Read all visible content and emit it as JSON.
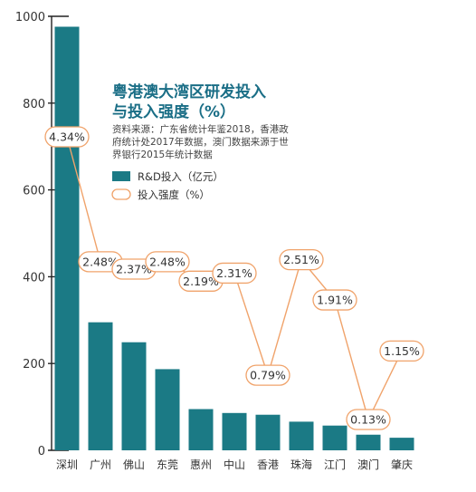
{
  "chart_data": {
    "type": "bar",
    "title_lines": [
      "粤港澳大湾区研发投入",
      "与投入强度（%）"
    ],
    "source_lines": [
      "资料来源：广东省统计年鉴2018，香港政",
      "府统计处2017年数据，澳门数据来源于世",
      "界银行2015年统计数据"
    ],
    "categories": [
      "深圳",
      "广州",
      "佛山",
      "东莞",
      "惠州",
      "中山",
      "香港",
      "珠海",
      "江门",
      "澳门",
      "肇庆"
    ],
    "ylim": [
      0,
      1000
    ],
    "yticks": [
      "0",
      "200",
      "400",
      "600",
      "800",
      "1000"
    ],
    "grid": false,
    "series": [
      {
        "name": "R&D投入（亿元）",
        "type": "bar",
        "color": "#1b7a85",
        "values": [
          976,
          295,
          249,
          187,
          95,
          86,
          82,
          66,
          57,
          36,
          29
        ]
      },
      {
        "name": "投入强度（%）",
        "type": "line",
        "color": "#f0a36b",
        "values": [
          4.34,
          2.48,
          2.37,
          2.48,
          2.19,
          2.31,
          0.79,
          2.51,
          1.91,
          0.13,
          1.15
        ],
        "labels": [
          "4.34%",
          "2.48%",
          "2.37%",
          "2.48%",
          "2.19%",
          "2.31%",
          "0.79%",
          "2.51%",
          "1.91%",
          "0.13%",
          "1.15%"
        ]
      }
    ],
    "legend_position": "top-center"
  }
}
